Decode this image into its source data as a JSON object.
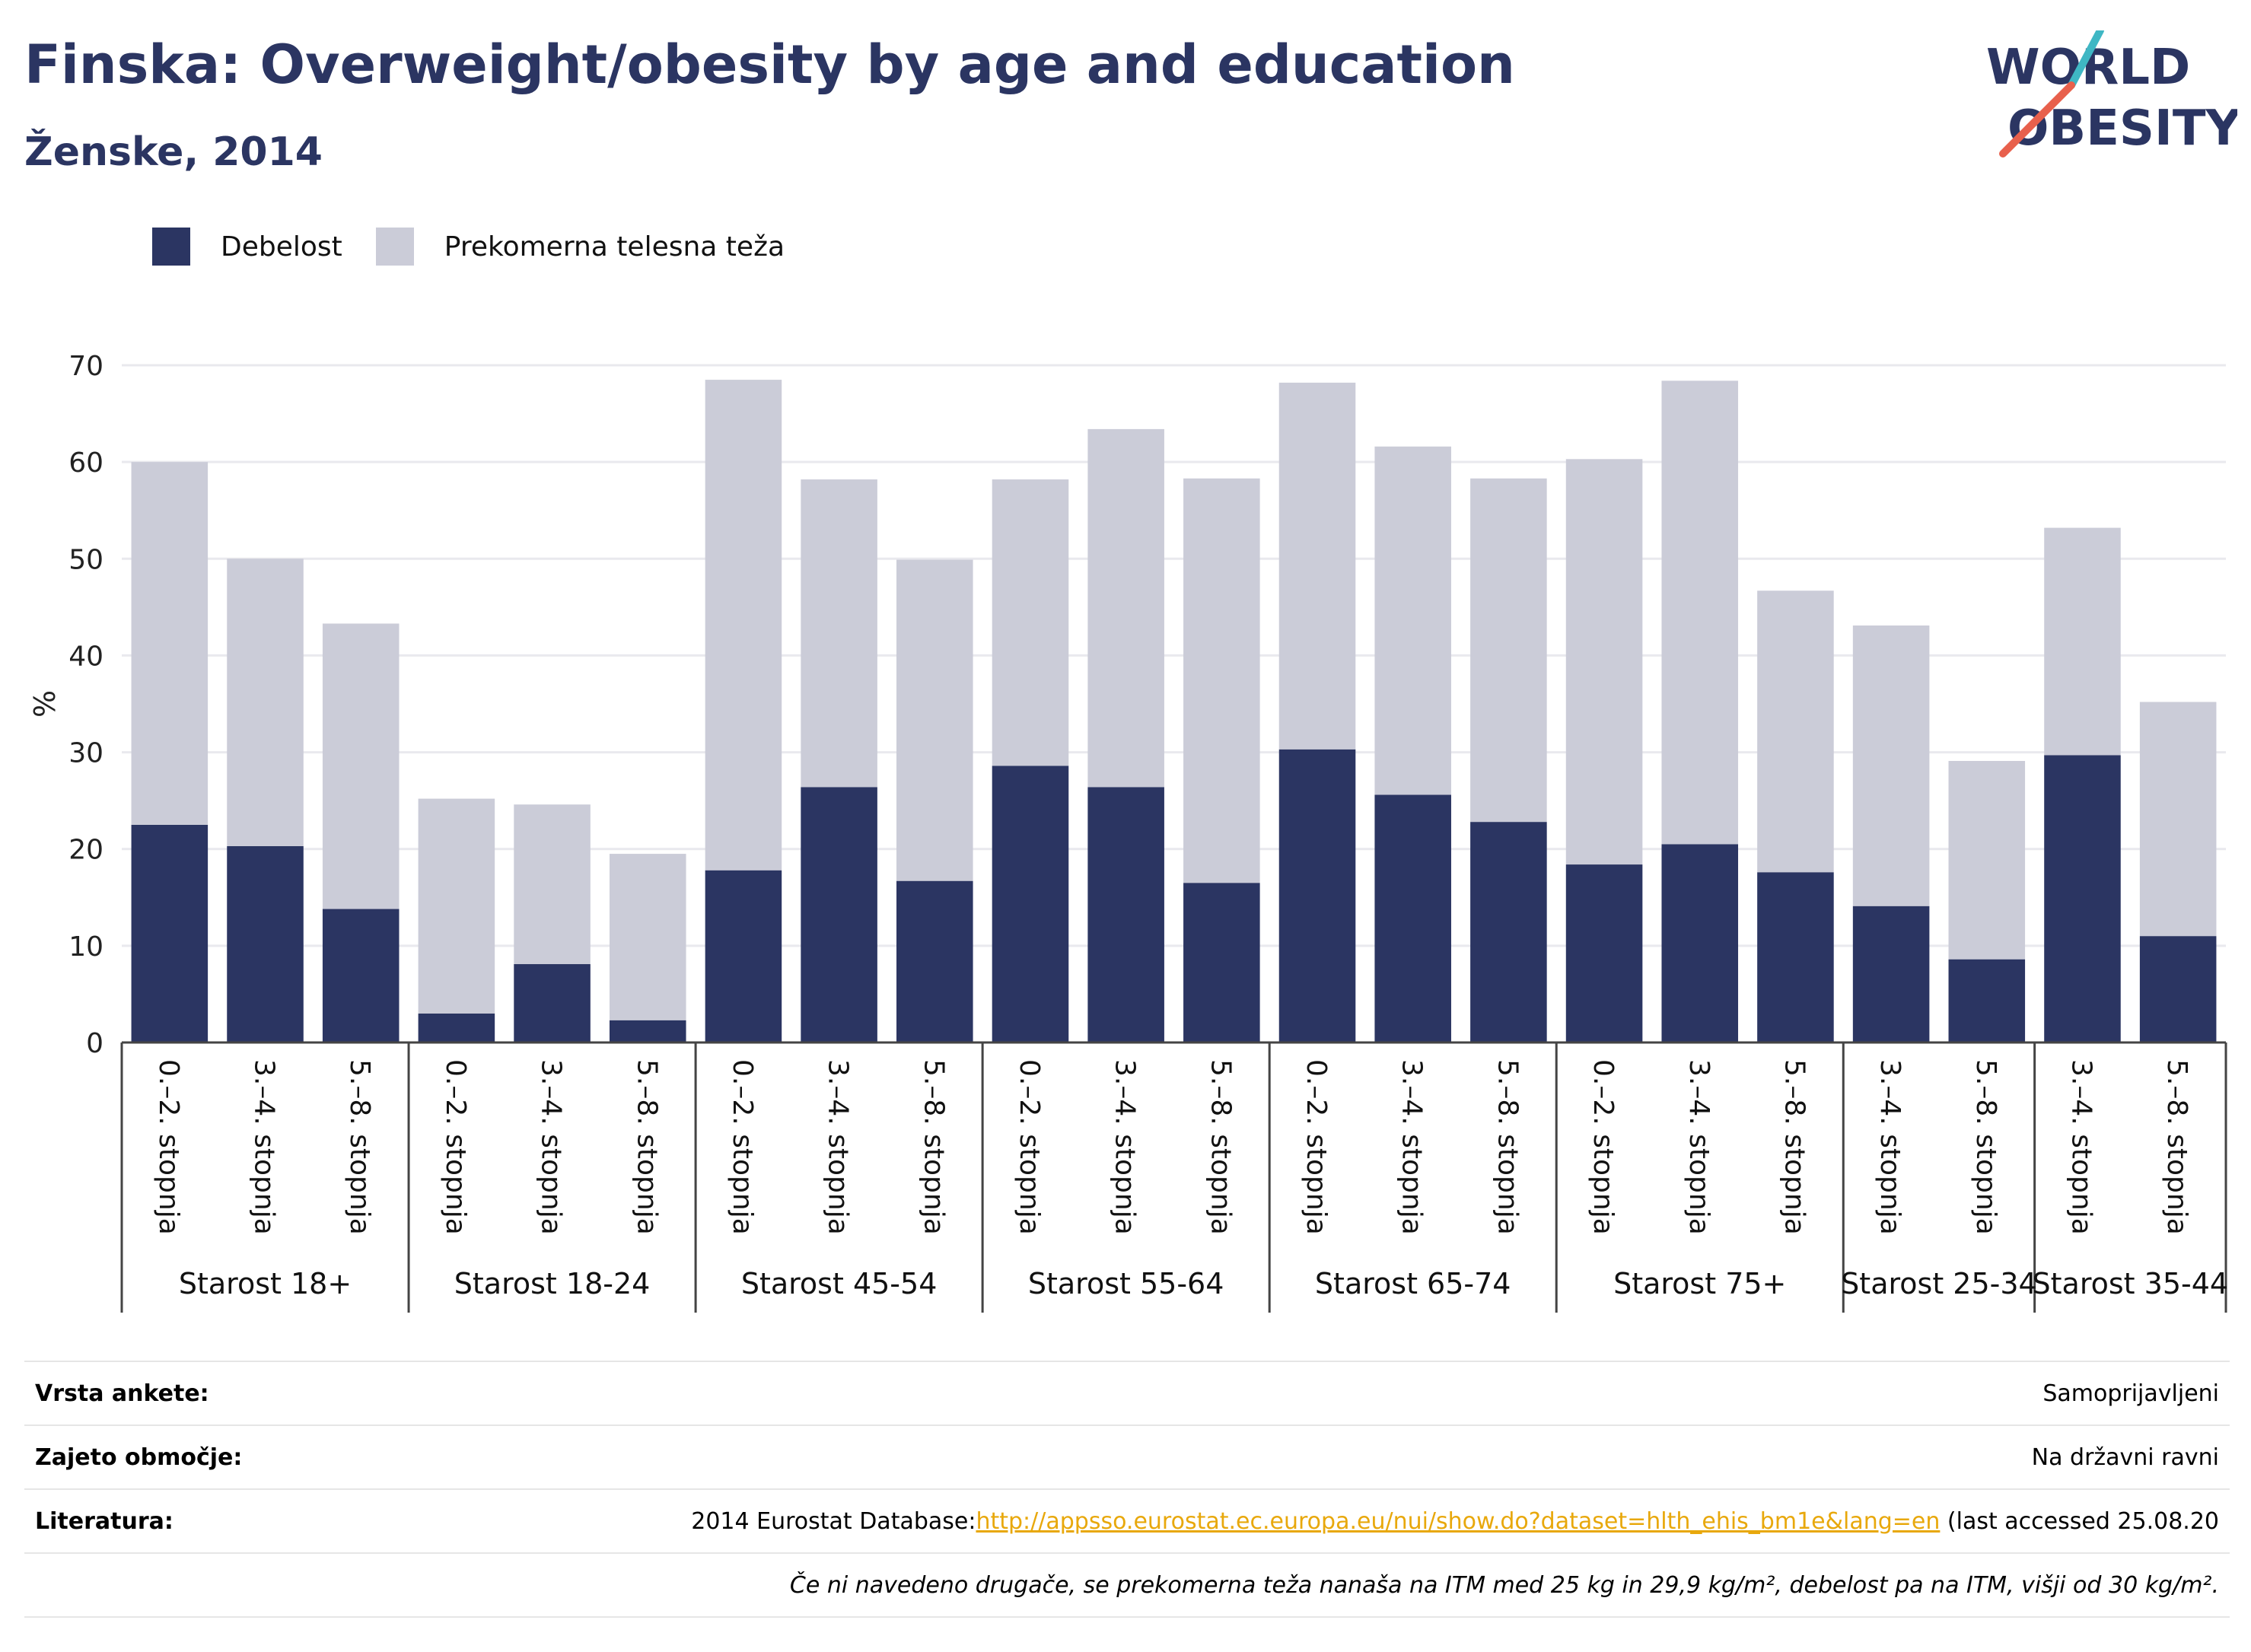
{
  "header": {
    "title": "Finska: Overweight/obesity by age and education",
    "subtitle": "Ženske, 2014"
  },
  "logo": {
    "line1": "WORLD",
    "line2": "OBESITY",
    "colors": {
      "text": "#2b3562",
      "slash_red": "#e8604c",
      "slash_teal": "#3fb7c4"
    }
  },
  "legend": [
    {
      "label": "Debelost",
      "color": "#2b3562"
    },
    {
      "label": "Prekomerna telesna teža",
      "color": "#cbccd8"
    }
  ],
  "chart_data": {
    "type": "bar",
    "stacked": true,
    "ylabel": "%",
    "ylim": [
      0,
      70
    ],
    "yticks": [
      0,
      10,
      20,
      30,
      40,
      50,
      60,
      70
    ],
    "grid": true,
    "legend_position": "top-left",
    "groups": [
      {
        "label": "Starost 18+",
        "categories": [
          "0.–2. stopnja",
          "3.–4. stopnja",
          "5.–8. stopnja"
        ]
      },
      {
        "label": "Starost 18-24",
        "categories": [
          "0.–2. stopnja",
          "3.–4. stopnja",
          "5.–8. stopnja"
        ]
      },
      {
        "label": "Starost 45-54",
        "categories": [
          "0.–2. stopnja",
          "3.–4. stopnja",
          "5.–8. stopnja"
        ]
      },
      {
        "label": "Starost 55-64",
        "categories": [
          "0.–2. stopnja",
          "3.–4. stopnja",
          "5.–8. stopnja"
        ]
      },
      {
        "label": "Starost 65-74",
        "categories": [
          "0.–2. stopnja",
          "3.–4. stopnja",
          "5.–8. stopnja"
        ]
      },
      {
        "label": "Starost 75+",
        "categories": [
          "0.–2. stopnja",
          "3.–4. stopnja",
          "5.–8. stopnja"
        ]
      },
      {
        "label": "Starost 25-34",
        "categories": [
          "3.–4. stopnja",
          "5.–8. stopnja"
        ]
      },
      {
        "label": "Starost 35-44",
        "categories": [
          "3.–4. stopnja",
          "5.–8. stopnja"
        ]
      }
    ],
    "series": [
      {
        "name": "Debelost",
        "color": "#2b3562",
        "values": [
          22.5,
          20.3,
          13.8,
          3.0,
          8.1,
          2.3,
          17.8,
          26.4,
          16.7,
          28.6,
          26.4,
          16.5,
          30.3,
          25.6,
          22.8,
          18.4,
          20.5,
          17.6,
          14.1,
          8.6,
          29.7,
          11.0
        ]
      },
      {
        "name": "Prekomerna telesna teža",
        "color": "#cbccd8",
        "values": [
          37.5,
          29.7,
          29.5,
          22.2,
          16.5,
          17.2,
          50.7,
          31.8,
          33.2,
          29.6,
          37.0,
          41.8,
          37.9,
          36.0,
          35.5,
          41.9,
          47.9,
          29.1,
          29.0,
          20.5,
          23.5,
          24.2
        ]
      }
    ]
  },
  "meta": [
    {
      "label": "Vrsta ankete:",
      "value": "Samoprijavljeni"
    },
    {
      "label": "Zajeto območje:",
      "value": "Na državni ravni"
    },
    {
      "label": "Literatura:",
      "prefix": "2014 Eurostat Database:",
      "link": "http://appsso.eurostat.ec.europa.eu/nui/show.do?dataset=hlth_ehis_bm1e&lang=en",
      "suffix": " (last accessed 25.08.20"
    }
  ],
  "note": "Če ni navedeno drugače, se prekomerna teža nanaša na ITM med 25 kg in 29,9 kg/m², debelost pa na ITM, višji od 30 kg/m²."
}
